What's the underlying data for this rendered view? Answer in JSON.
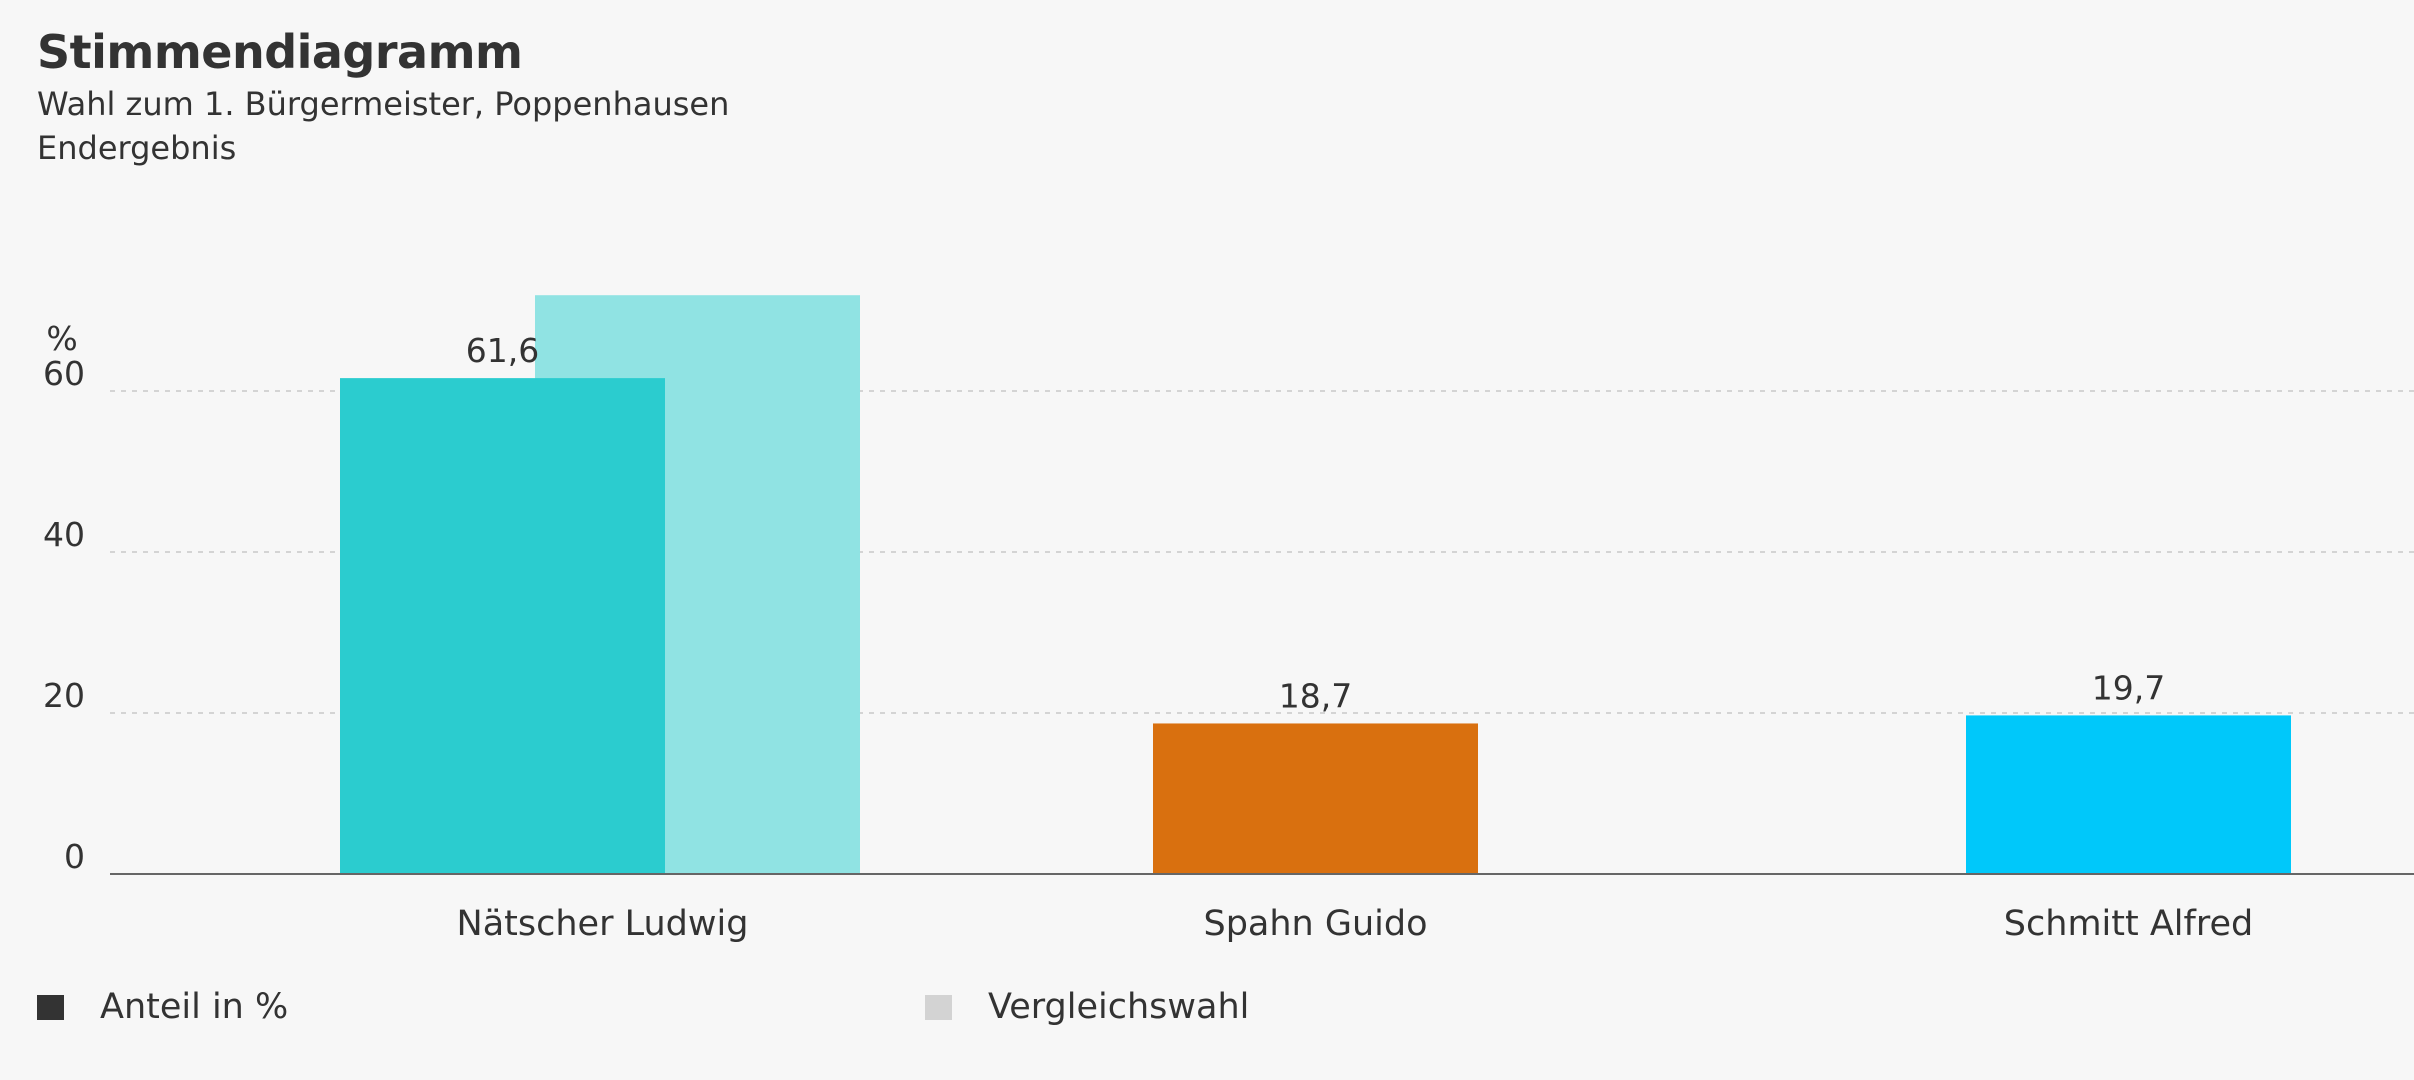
{
  "header": {
    "title": "Stimmendiagramm",
    "subtitle_line1": "Wahl zum 1. Bürgermeister, Poppenhausen",
    "subtitle_line2": "Endergebnis"
  },
  "legend": {
    "items": [
      {
        "label": "Anteil in %",
        "color": "#333333"
      },
      {
        "label": "Vergleichswahl",
        "color": "#d3d3d3"
      }
    ]
  },
  "chart_data": {
    "type": "bar",
    "title": "Stimmendiagramm",
    "subtitle": "Wahl zum 1. Bürgermeister, Poppenhausen · Endergebnis",
    "ylabel": "%",
    "xlabel": "",
    "ylim": [
      0,
      76
    ],
    "yticks": [
      0,
      20,
      40,
      60
    ],
    "grid": true,
    "legend": "bottom-left",
    "categories": [
      "Nätscher Ludwig",
      "Spahn Guido",
      "Schmitt Alfred"
    ],
    "series": [
      {
        "name": "Anteil in %",
        "values": [
          61.6,
          18.7,
          19.7
        ],
        "labels": [
          "61,6",
          "18,7",
          "19,7"
        ],
        "colors": [
          "#2bcccf",
          "#d9700f",
          "#00c8fa"
        ]
      },
      {
        "name": "Vergleichswahl",
        "values": [
          71.9,
          null,
          null
        ],
        "colors": [
          "#90e3e3",
          null,
          null
        ]
      }
    ]
  }
}
